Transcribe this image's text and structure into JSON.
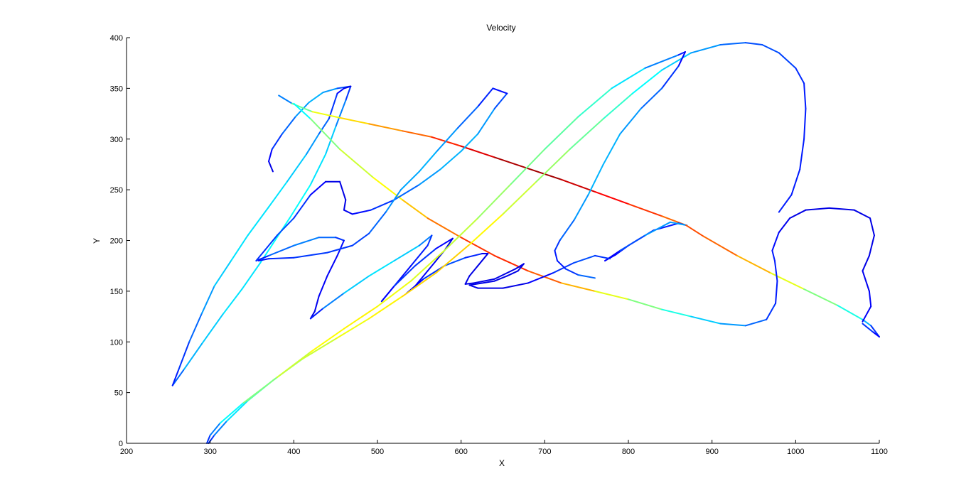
{
  "chart_data": {
    "type": "line",
    "title": "Velocity",
    "xlabel": "X",
    "ylabel": "Y",
    "xlim": [
      200,
      1100
    ],
    "ylim": [
      0,
      400
    ],
    "xticks": [
      200,
      300,
      400,
      500,
      600,
      700,
      800,
      900,
      1000,
      1100
    ],
    "yticks": [
      0,
      50,
      100,
      150,
      200,
      250,
      300,
      350,
      400
    ],
    "grid": false,
    "legend": "none",
    "colormap": "jet",
    "color_encodes": "velocity",
    "series": [
      {
        "points": [
          [
            375,
            268
          ],
          [
            370,
            278
          ],
          [
            374,
            290
          ],
          [
            386,
            305
          ],
          [
            402,
            322
          ],
          [
            418,
            336
          ],
          [
            435,
            346
          ],
          [
            452,
            350
          ],
          [
            468,
            352
          ],
          [
            462,
            338
          ],
          [
            450,
            312
          ],
          [
            438,
            285
          ],
          [
            420,
            255
          ],
          [
            395,
            222
          ],
          [
            360,
            178
          ],
          [
            338,
            152
          ],
          [
            315,
            127
          ],
          [
            290,
            98
          ],
          [
            268,
            72
          ],
          [
            255,
            57
          ],
          [
            262,
            72
          ],
          [
            275,
            100
          ],
          [
            290,
            128
          ],
          [
            305,
            155
          ],
          [
            325,
            180
          ],
          [
            345,
            205
          ],
          [
            370,
            233
          ],
          [
            392,
            258
          ],
          [
            415,
            285
          ],
          [
            430,
            305
          ],
          [
            442,
            320
          ],
          [
            452,
            345
          ],
          [
            460,
            350
          ],
          [
            468,
            352
          ]
        ],
        "velocity": [
          0.1,
          0.1,
          0.15,
          0.2,
          0.25,
          0.3,
          0.3,
          0.25,
          0.15,
          0.2,
          0.3,
          0.35,
          0.35,
          0.4,
          0.35,
          0.35,
          0.35,
          0.3,
          0.3,
          0.15,
          0.15,
          0.2,
          0.25,
          0.3,
          0.35,
          0.35,
          0.35,
          0.35,
          0.3,
          0.25,
          0.2,
          0.15,
          0.1,
          0.1
        ]
      },
      {
        "points": [
          [
            382,
            343
          ],
          [
            398,
            335
          ],
          [
            422,
            327
          ],
          [
            455,
            321
          ],
          [
            490,
            315
          ],
          [
            530,
            308
          ],
          [
            565,
            302
          ],
          [
            600,
            293
          ],
          [
            640,
            282
          ],
          [
            680,
            271
          ],
          [
            720,
            260
          ],
          [
            760,
            248
          ],
          [
            800,
            236
          ],
          [
            840,
            224
          ],
          [
            869,
            215
          ]
        ],
        "velocity": [
          0.15,
          0.35,
          0.6,
          0.62,
          0.7,
          0.75,
          0.8,
          0.88,
          0.93,
          0.98,
          0.95,
          0.9,
          0.85,
          0.8,
          0.75
        ]
      },
      {
        "points": [
          [
            869,
            215
          ],
          [
            860,
            217
          ],
          [
            830,
            210
          ],
          [
            800,
            195
          ],
          [
            785,
            186
          ],
          [
            772,
            180
          ],
          [
            790,
            190
          ],
          [
            820,
            205
          ],
          [
            850,
            218
          ],
          [
            870,
            215
          ]
        ],
        "velocity": [
          0.2,
          0.15,
          0.15,
          0.15,
          0.15,
          0.1,
          0.15,
          0.25,
          0.3,
          0.25
        ]
      },
      {
        "points": [
          [
            869,
            215
          ],
          [
            890,
            204
          ],
          [
            930,
            185
          ],
          [
            970,
            168
          ],
          [
            1010,
            152
          ],
          [
            1050,
            136
          ],
          [
            1080,
            122
          ],
          [
            1090,
            116
          ],
          [
            1100,
            105
          ],
          [
            1092,
            110
          ],
          [
            1080,
            118
          ]
        ],
        "velocity": [
          0.8,
          0.8,
          0.75,
          0.65,
          0.55,
          0.45,
          0.35,
          0.25,
          0.1,
          0.15,
          0.2
        ]
      },
      {
        "points": [
          [
            400,
            335
          ],
          [
            420,
            320
          ],
          [
            455,
            290
          ],
          [
            495,
            262
          ],
          [
            530,
            240
          ],
          [
            560,
            222
          ],
          [
            600,
            203
          ],
          [
            640,
            185
          ],
          [
            680,
            170
          ],
          [
            720,
            158
          ],
          [
            760,
            150
          ],
          [
            800,
            142
          ],
          [
            840,
            132
          ],
          [
            875,
            125
          ],
          [
            910,
            118
          ],
          [
            940,
            116
          ],
          [
            965,
            122
          ],
          [
            976,
            138
          ],
          [
            978,
            160
          ],
          [
            975,
            180
          ],
          [
            972,
            190
          ]
        ],
        "velocity": [
          0.3,
          0.45,
          0.55,
          0.6,
          0.65,
          0.72,
          0.8,
          0.85,
          0.82,
          0.75,
          0.65,
          0.55,
          0.45,
          0.35,
          0.3,
          0.25,
          0.2,
          0.15,
          0.15,
          0.15,
          0.15
        ]
      },
      {
        "points": [
          [
            972,
            190
          ],
          [
            980,
            208
          ],
          [
            993,
            222
          ],
          [
            1012,
            230
          ],
          [
            1040,
            232
          ],
          [
            1070,
            230
          ],
          [
            1089,
            222
          ],
          [
            1094,
            205
          ],
          [
            1088,
            185
          ],
          [
            1080,
            170
          ],
          [
            1088,
            150
          ],
          [
            1090,
            135
          ],
          [
            1080,
            120
          ]
        ],
        "velocity": [
          0.15,
          0.12,
          0.1,
          0.1,
          0.1,
          0.1,
          0.1,
          0.1,
          0.1,
          0.1,
          0.12,
          0.12,
          0.12
        ]
      },
      {
        "points": [
          [
            355,
            180
          ],
          [
            370,
            185
          ],
          [
            400,
            195
          ],
          [
            430,
            203
          ],
          [
            450,
            203
          ],
          [
            460,
            200
          ],
          [
            452,
            185
          ],
          [
            440,
            165
          ],
          [
            430,
            145
          ],
          [
            425,
            130
          ],
          [
            420,
            123
          ],
          [
            435,
            133
          ],
          [
            460,
            148
          ],
          [
            490,
            165
          ],
          [
            520,
            180
          ],
          [
            550,
            195
          ],
          [
            565,
            205
          ],
          [
            560,
            195
          ],
          [
            540,
            175
          ],
          [
            520,
            155
          ],
          [
            505,
            140
          ],
          [
            520,
            155
          ],
          [
            545,
            175
          ],
          [
            570,
            192
          ],
          [
            590,
            202
          ],
          [
            580,
            190
          ],
          [
            560,
            170
          ],
          [
            545,
            155
          ],
          [
            535,
            148
          ],
          [
            555,
            162
          ],
          [
            580,
            175
          ],
          [
            605,
            183
          ],
          [
            625,
            187
          ],
          [
            632,
            187
          ],
          [
            620,
            175
          ],
          [
            610,
            165
          ],
          [
            605,
            157
          ],
          [
            615,
            158
          ],
          [
            640,
            162
          ],
          [
            665,
            172
          ],
          [
            675,
            177
          ],
          [
            668,
            170
          ],
          [
            655,
            165
          ],
          [
            640,
            160
          ],
          [
            625,
            158
          ],
          [
            610,
            156
          ],
          [
            620,
            153
          ],
          [
            650,
            153
          ],
          [
            680,
            158
          ],
          [
            710,
            168
          ],
          [
            735,
            178
          ],
          [
            760,
            185
          ],
          [
            778,
            182
          ]
        ],
        "velocity": [
          0.1,
          0.2,
          0.25,
          0.25,
          0.2,
          0.15,
          0.12,
          0.12,
          0.12,
          0.1,
          0.1,
          0.2,
          0.3,
          0.35,
          0.35,
          0.3,
          0.2,
          0.15,
          0.15,
          0.12,
          0.1,
          0.15,
          0.2,
          0.15,
          0.1,
          0.1,
          0.12,
          0.12,
          0.1,
          0.15,
          0.2,
          0.2,
          0.12,
          0.1,
          0.1,
          0.1,
          0.1,
          0.1,
          0.1,
          0.1,
          0.1,
          0.1,
          0.1,
          0.1,
          0.1,
          0.1,
          0.1,
          0.1,
          0.1,
          0.15,
          0.2,
          0.2,
          0.15
        ]
      },
      {
        "points": [
          [
            355,
            180
          ],
          [
            380,
            205
          ],
          [
            400,
            222
          ],
          [
            420,
            245
          ],
          [
            438,
            258
          ],
          [
            455,
            258
          ],
          [
            462,
            240
          ],
          [
            460,
            230
          ],
          [
            470,
            226
          ],
          [
            492,
            230
          ],
          [
            520,
            240
          ],
          [
            550,
            255
          ],
          [
            575,
            270
          ],
          [
            600,
            288
          ],
          [
            620,
            305
          ],
          [
            640,
            330
          ],
          [
            655,
            345
          ],
          [
            638,
            350
          ],
          [
            620,
            332
          ],
          [
            595,
            310
          ],
          [
            570,
            287
          ],
          [
            550,
            268
          ],
          [
            528,
            250
          ],
          [
            510,
            228
          ],
          [
            490,
            207
          ],
          [
            470,
            195
          ],
          [
            440,
            188
          ],
          [
            400,
            183
          ],
          [
            370,
            182
          ],
          [
            358,
            180
          ]
        ],
        "velocity": [
          0.15,
          0.2,
          0.2,
          0.15,
          0.1,
          0.1,
          0.1,
          0.1,
          0.12,
          0.15,
          0.2,
          0.25,
          0.3,
          0.3,
          0.3,
          0.25,
          0.15,
          0.12,
          0.2,
          0.25,
          0.3,
          0.3,
          0.28,
          0.25,
          0.2,
          0.18,
          0.18,
          0.18,
          0.15,
          0.12
        ]
      },
      {
        "points": [
          [
            298,
            0
          ],
          [
            305,
            8
          ],
          [
            320,
            22
          ],
          [
            345,
            42
          ],
          [
            375,
            62
          ],
          [
            410,
            83
          ],
          [
            450,
            103
          ],
          [
            490,
            123
          ],
          [
            530,
            145
          ],
          [
            570,
            168
          ],
          [
            610,
            196
          ],
          [
            650,
            226
          ],
          [
            690,
            258
          ],
          [
            730,
            290
          ],
          [
            770,
            320
          ],
          [
            805,
            345
          ],
          [
            840,
            368
          ],
          [
            875,
            385
          ],
          [
            910,
            393
          ],
          [
            940,
            395
          ],
          [
            960,
            393
          ],
          [
            980,
            385
          ],
          [
            1000,
            370
          ],
          [
            1010,
            355
          ],
          [
            1012,
            330
          ],
          [
            1010,
            300
          ],
          [
            1005,
            270
          ],
          [
            995,
            245
          ],
          [
            980,
            228
          ]
        ],
        "velocity": [
          0.15,
          0.2,
          0.3,
          0.4,
          0.5,
          0.55,
          0.6,
          0.62,
          0.65,
          0.68,
          0.66,
          0.6,
          0.55,
          0.5,
          0.45,
          0.4,
          0.35,
          0.3,
          0.25,
          0.2,
          0.2,
          0.2,
          0.18,
          0.15,
          0.15,
          0.15,
          0.15,
          0.15,
          0.15
        ]
      },
      {
        "points": [
          [
            296,
            0
          ],
          [
            300,
            8
          ],
          [
            312,
            20
          ],
          [
            340,
            40
          ],
          [
            380,
            65
          ],
          [
            420,
            90
          ],
          [
            460,
            113
          ],
          [
            500,
            135
          ],
          [
            540,
            160
          ],
          [
            580,
            190
          ],
          [
            620,
            222
          ],
          [
            660,
            256
          ],
          [
            700,
            290
          ],
          [
            740,
            322
          ],
          [
            780,
            350
          ],
          [
            820,
            370
          ],
          [
            860,
            383
          ],
          [
            868,
            386
          ],
          [
            860,
            372
          ],
          [
            840,
            350
          ],
          [
            815,
            330
          ],
          [
            790,
            305
          ],
          [
            770,
            275
          ],
          [
            752,
            245
          ],
          [
            735,
            220
          ],
          [
            718,
            200
          ],
          [
            712,
            190
          ],
          [
            715,
            180
          ],
          [
            725,
            172
          ],
          [
            740,
            166
          ],
          [
            760,
            163
          ]
        ],
        "velocity": [
          0.15,
          0.2,
          0.3,
          0.45,
          0.55,
          0.6,
          0.65,
          0.62,
          0.6,
          0.58,
          0.55,
          0.5,
          0.48,
          0.45,
          0.4,
          0.3,
          0.2,
          0.1,
          0.15,
          0.2,
          0.25,
          0.3,
          0.3,
          0.3,
          0.25,
          0.2,
          0.15,
          0.15,
          0.15,
          0.2,
          0.25
        ]
      }
    ]
  }
}
